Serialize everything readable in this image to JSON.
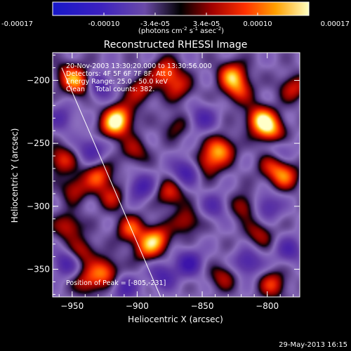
{
  "chart_data": {
    "type": "heatmap",
    "title": "Reconstructed RHESSI Image",
    "xlabel": "Heliocentric X (arcsec)",
    "ylabel": "Heliocentric Y (arcsec)",
    "xlim": [
      -965,
      -775
    ],
    "ylim": [
      -372,
      -178
    ],
    "x_ticks": [
      -950,
      -900,
      -850,
      -800
    ],
    "y_ticks": [
      -200,
      -250,
      -300,
      -350
    ],
    "colorbar": {
      "ticks": [
        "-0.00017",
        "-0.00010",
        "-3.4e-05",
        "3.4e-05",
        "0.00010",
        "0.00017"
      ],
      "unit_parts": [
        "(photons cm",
        "-2",
        " s",
        "-1",
        " asec",
        "-2",
        ")"
      ],
      "range": [
        -0.00017,
        0.00017
      ]
    },
    "annotations": [
      "20-Nov-2003 13:30:20.000 to 13:30:56.000",
      "Detectors: 4F 5F 6F 7F 8F, Att 0",
      "Energy Range: 25.0 - 50.0 keV",
      "Clean     Total counts: 382."
    ],
    "peak_label": "Position of Peak = [-805,-231]",
    "hotspots": [
      {
        "x": -944,
        "y": -203,
        "v": 0.65
      },
      {
        "x": -952,
        "y": -196,
        "v": 0.55
      },
      {
        "x": -918,
        "y": -236,
        "v": 0.85
      },
      {
        "x": -913,
        "y": -228,
        "v": 0.7
      },
      {
        "x": -898,
        "y": -208,
        "v": 0.55
      },
      {
        "x": -878,
        "y": -194,
        "v": 0.75
      },
      {
        "x": -868,
        "y": -206,
        "v": 0.5
      },
      {
        "x": -827,
        "y": -196,
        "v": 0.85
      },
      {
        "x": -822,
        "y": -208,
        "v": 0.6
      },
      {
        "x": -805,
        "y": -231,
        "v": 1.0
      },
      {
        "x": -797,
        "y": -240,
        "v": 0.8
      },
      {
        "x": -780,
        "y": -206,
        "v": 0.55
      },
      {
        "x": -787,
        "y": -276,
        "v": 0.75
      },
      {
        "x": -797,
        "y": -268,
        "v": 0.45
      },
      {
        "x": -836,
        "y": -255,
        "v": 0.85
      },
      {
        "x": -846,
        "y": -266,
        "v": 0.6
      },
      {
        "x": -958,
        "y": -263,
        "v": 0.6
      },
      {
        "x": -948,
        "y": -286,
        "v": 0.5
      },
      {
        "x": -930,
        "y": -276,
        "v": 0.7
      },
      {
        "x": -920,
        "y": -292,
        "v": 0.5
      },
      {
        "x": -953,
        "y": -316,
        "v": 0.55
      },
      {
        "x": -942,
        "y": -336,
        "v": 0.5
      },
      {
        "x": -925,
        "y": -352,
        "v": 0.75
      },
      {
        "x": -938,
        "y": -360,
        "v": 0.55
      },
      {
        "x": -905,
        "y": -318,
        "v": 0.7
      },
      {
        "x": -885,
        "y": -326,
        "v": 0.8
      },
      {
        "x": -893,
        "y": -334,
        "v": 0.55
      },
      {
        "x": -862,
        "y": -312,
        "v": 0.5
      },
      {
        "x": -875,
        "y": -290,
        "v": 0.6
      },
      {
        "x": -818,
        "y": -300,
        "v": 0.5
      },
      {
        "x": -806,
        "y": -322,
        "v": 0.45
      },
      {
        "x": -796,
        "y": -362,
        "v": 0.6
      },
      {
        "x": -834,
        "y": -356,
        "v": 0.45
      },
      {
        "x": -902,
        "y": -256,
        "v": 0.45
      },
      {
        "x": -870,
        "y": -236,
        "v": 0.35
      },
      {
        "x": -930,
        "y": -205,
        "v": -0.55
      },
      {
        "x": -935,
        "y": -255,
        "v": -0.5
      },
      {
        "x": -897,
        "y": -285,
        "v": -0.55
      },
      {
        "x": -862,
        "y": -272,
        "v": -0.6
      },
      {
        "x": -860,
        "y": -345,
        "v": -0.6
      },
      {
        "x": -815,
        "y": -345,
        "v": -0.55
      },
      {
        "x": -850,
        "y": -230,
        "v": -0.45
      },
      {
        "x": -800,
        "y": -300,
        "v": -0.5
      },
      {
        "x": -880,
        "y": -355,
        "v": -0.5
      },
      {
        "x": -958,
        "y": -230,
        "v": -0.4
      },
      {
        "x": -955,
        "y": -345,
        "v": -0.5
      },
      {
        "x": -910,
        "y": -365,
        "v": -0.45
      },
      {
        "x": -783,
        "y": -335,
        "v": -0.45
      },
      {
        "x": -840,
        "y": -300,
        "v": -0.4
      },
      {
        "x": -790,
        "y": -255,
        "v": -0.3
      }
    ],
    "limb": [
      {
        "x": -958,
        "y": -190
      },
      {
        "x": -882,
        "y": -372
      }
    ]
  },
  "footer_date": "29-May-2013 16:15"
}
